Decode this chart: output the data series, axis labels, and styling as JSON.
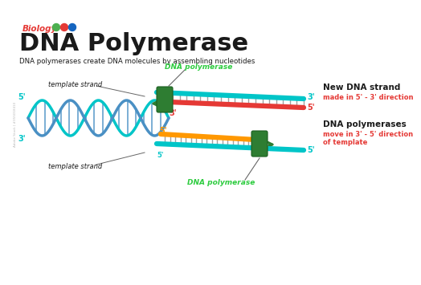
{
  "title": "DNA Polymerase",
  "subtitle": "Biology",
  "description": "DNA polymerases create DNA molecules by assembling nucleotides",
  "colors": {
    "teal": "#00C5C8",
    "teal2": "#4BAFC4",
    "blue_strand": "#4A90C4",
    "red": "#E53935",
    "orange": "#FF9800",
    "green_poly": "#2E7D32",
    "green_light": "#2ECC40",
    "black": "#1A1A1A",
    "white": "#FFFFFF",
    "gray": "#666666",
    "red_label": "#E53935",
    "green_dot": "#4CAF50",
    "red_dot": "#E53935",
    "blue_dot": "#1565C0",
    "rung": "#888888"
  },
  "right_labels": {
    "label1_line1": "New DNA strand",
    "label1_line2": "made in 5' - 3' direction",
    "label2_line1": "DNA polymerases",
    "label2_line2": "move in 3' - 5' direction",
    "label2_line3": "of template"
  }
}
